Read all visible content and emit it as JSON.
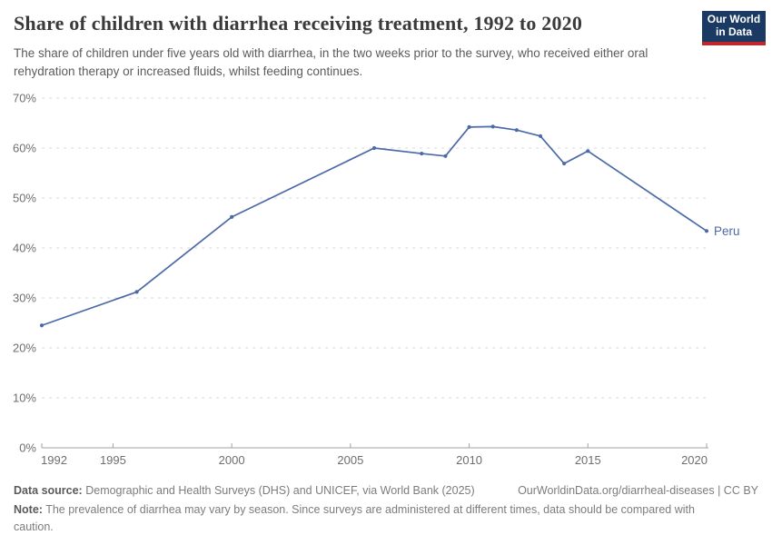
{
  "header": {
    "title": "Share of children with diarrhea receiving treatment, 1992 to 2020",
    "subtitle": "The share of children under five years old with diarrhea, in the two weeks prior to the survey, who received either oral rehydration therapy or increased fluids, whilst feeding continues.",
    "logo": {
      "line1": "Our World",
      "line2": "in Data",
      "bg_color": "#1a3a63",
      "accent_color": "#c0272d"
    }
  },
  "chart_data": {
    "type": "line",
    "title": "Share of children with diarrhea receiving treatment, 1992 to 2020",
    "xlabel": "",
    "ylabel": "",
    "xlim": [
      1992,
      2020
    ],
    "ylim": [
      0,
      70
    ],
    "x_ticks": [
      1992,
      1995,
      2000,
      2005,
      2010,
      2015,
      2020
    ],
    "y_ticks": [
      0,
      10,
      20,
      30,
      40,
      50,
      60,
      70
    ],
    "y_tick_suffix": "%",
    "grid": "dashed-horizontal",
    "legend_position": "end-of-line-label",
    "series": [
      {
        "name": "Peru",
        "color": "#4c6aa8",
        "points": [
          [
            1992,
            24.5
          ],
          [
            1996,
            31.2
          ],
          [
            2000,
            46.2
          ],
          [
            2006,
            60.0
          ],
          [
            2008,
            58.9
          ],
          [
            2009,
            58.4
          ],
          [
            2010,
            64.2
          ],
          [
            2011,
            64.3
          ],
          [
            2012,
            63.6
          ],
          [
            2013,
            62.4
          ],
          [
            2014,
            56.9
          ],
          [
            2015,
            59.4
          ],
          [
            2020,
            43.4
          ]
        ]
      }
    ]
  },
  "footer": {
    "data_source_label": "Data source:",
    "data_source_text": "Demographic and Health Surveys (DHS) and UNICEF, via World Bank (2025)",
    "link_text": "OurWorldinData.org/diarrheal-diseases | CC BY",
    "note_label": "Note:",
    "note_text": "The prevalence of diarrhea may vary by season. Since surveys are administered at different times, data should be compared with caution."
  }
}
